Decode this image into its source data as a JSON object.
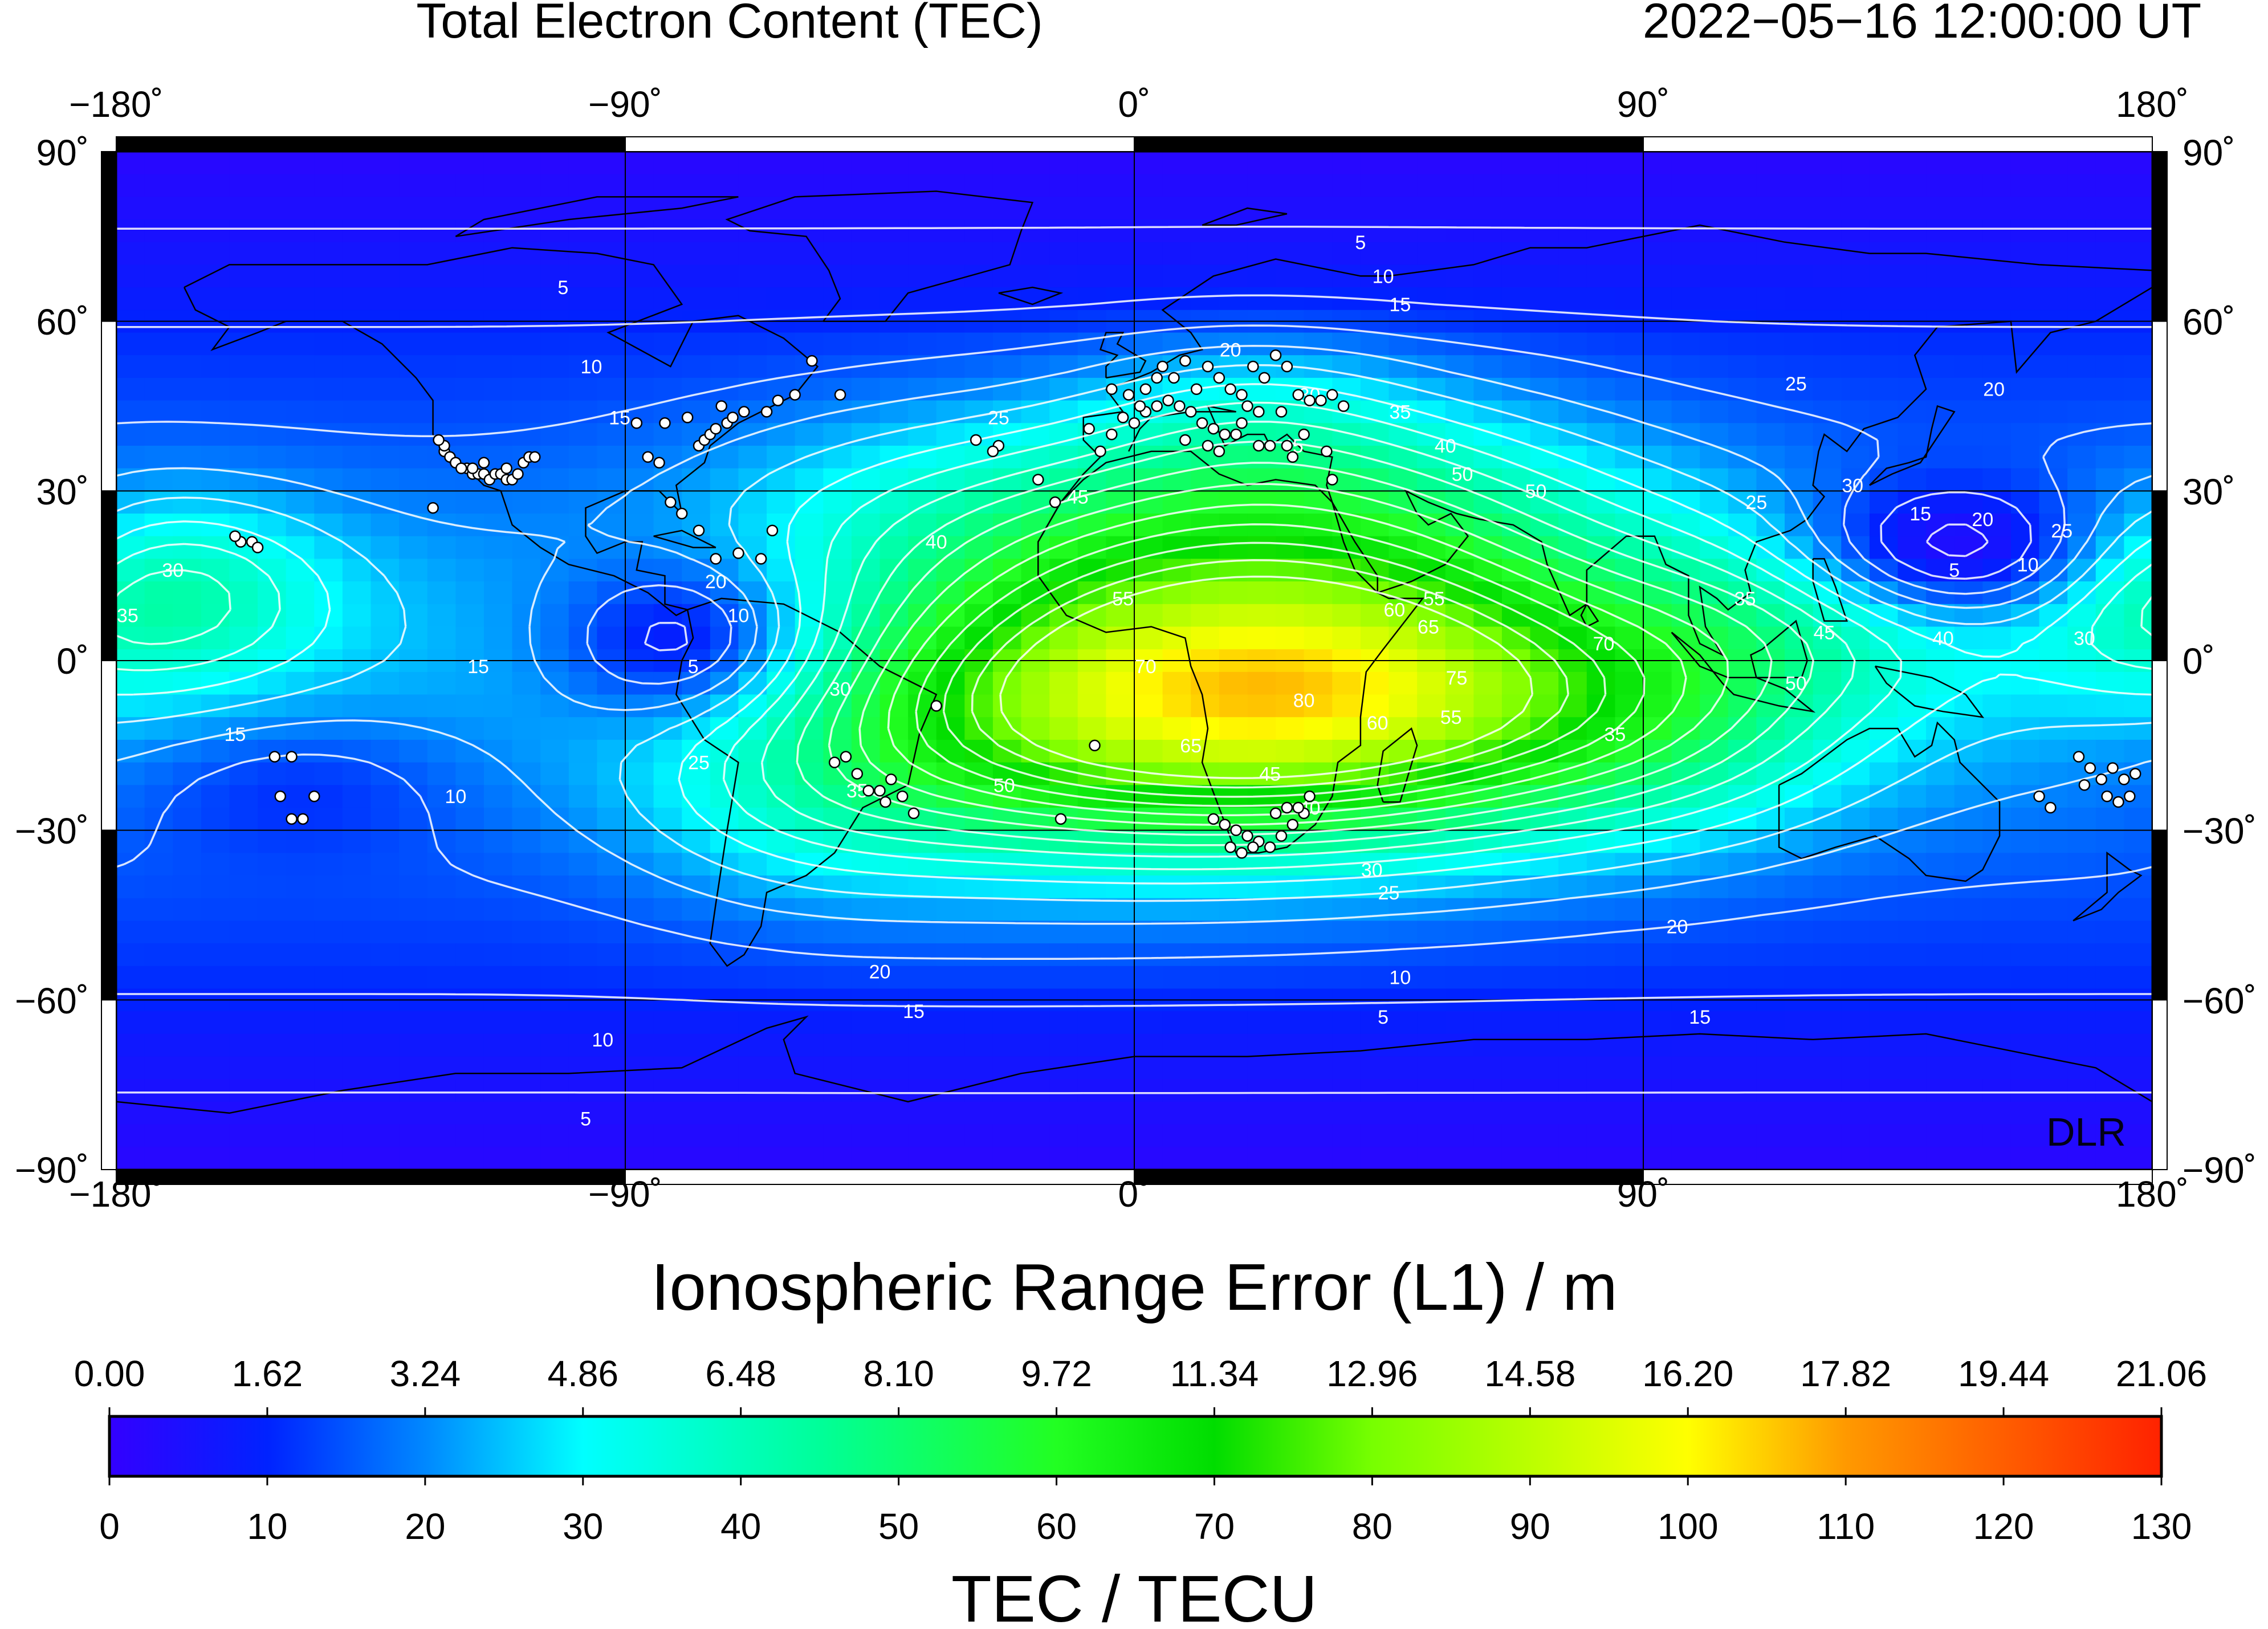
{
  "header": {
    "title": "Total Electron Content (TEC)",
    "timestamp": "2022−05−16  12:00:00 UT"
  },
  "map": {
    "lon_ticks_top": [
      "−180˚",
      "−90˚",
      "0˚",
      "90˚",
      "180˚"
    ],
    "lon_ticks_bottom": [
      "−180˚",
      "−90˚",
      "0˚",
      "90˚",
      "180˚"
    ],
    "lat_ticks_left": [
      "90˚",
      "60˚",
      "30˚",
      "0˚",
      "−30˚",
      "−60˚",
      "−90˚"
    ],
    "lat_ticks_right": [
      "90˚",
      "60˚",
      "30˚",
      "0˚",
      "−30˚",
      "−60˚",
      "−90˚"
    ],
    "watermark": "DLR",
    "contour_labels": [
      {
        "text": "5",
        "lon": 40,
        "lat": 74
      },
      {
        "text": "10",
        "lon": 44,
        "lat": 68
      },
      {
        "text": "15",
        "lon": 47,
        "lat": 63
      },
      {
        "text": "5",
        "lon": -101,
        "lat": 66
      },
      {
        "text": "10",
        "lon": -96,
        "lat": 52
      },
      {
        "text": "15",
        "lon": -91,
        "lat": 43
      },
      {
        "text": "20",
        "lon": 17,
        "lat": 55
      },
      {
        "text": "25",
        "lon": -24,
        "lat": 43
      },
      {
        "text": "30",
        "lon": 31,
        "lat": 47
      },
      {
        "text": "35",
        "lon": 47,
        "lat": 44
      },
      {
        "text": "40",
        "lon": 55,
        "lat": 38
      },
      {
        "text": "45",
        "lon": 28,
        "lat": 38
      },
      {
        "text": "50",
        "lon": 58,
        "lat": 33
      },
      {
        "text": "50",
        "lon": 71,
        "lat": 30
      },
      {
        "text": "25",
        "lon": 117,
        "lat": 49
      },
      {
        "text": "20",
        "lon": 152,
        "lat": 48
      },
      {
        "text": "25",
        "lon": 110,
        "lat": 28
      },
      {
        "text": "30",
        "lon": 127,
        "lat": 31
      },
      {
        "text": "15",
        "lon": 139,
        "lat": 26
      },
      {
        "text": "20",
        "lon": 150,
        "lat": 25
      },
      {
        "text": "25",
        "lon": 164,
        "lat": 23
      },
      {
        "text": "5",
        "lon": 145,
        "lat": 16
      },
      {
        "text": "10",
        "lon": 158,
        "lat": 17
      },
      {
        "text": "30",
        "lon": -170,
        "lat": 16
      },
      {
        "text": "35",
        "lon": -178,
        "lat": 8
      },
      {
        "text": "20",
        "lon": -74,
        "lat": 14
      },
      {
        "text": "10",
        "lon": -70,
        "lat": 8
      },
      {
        "text": "5",
        "lon": -78,
        "lat": -1
      },
      {
        "text": "15",
        "lon": -116,
        "lat": -1
      },
      {
        "text": "40",
        "lon": -35,
        "lat": 21
      },
      {
        "text": "45",
        "lon": -10,
        "lat": 29
      },
      {
        "text": "55",
        "lon": -2,
        "lat": 11
      },
      {
        "text": "60",
        "lon": 46,
        "lat": 9
      },
      {
        "text": "65",
        "lon": 52,
        "lat": 6
      },
      {
        "text": "55",
        "lon": 53,
        "lat": 11
      },
      {
        "text": "70",
        "lon": 83,
        "lat": 3
      },
      {
        "text": "70",
        "lon": 2,
        "lat": -1
      },
      {
        "text": "75",
        "lon": 57,
        "lat": -3
      },
      {
        "text": "80",
        "lon": 30,
        "lat": -7
      },
      {
        "text": "60",
        "lon": 43,
        "lat": -11
      },
      {
        "text": "55",
        "lon": 56,
        "lat": -10
      },
      {
        "text": "65",
        "lon": 10,
        "lat": -15
      },
      {
        "text": "45",
        "lon": 24,
        "lat": -20
      },
      {
        "text": "40",
        "lon": 31,
        "lat": -26
      },
      {
        "text": "50",
        "lon": -23,
        "lat": -22
      },
      {
        "text": "35",
        "lon": 85,
        "lat": -13
      },
      {
        "text": "30",
        "lon": -52,
        "lat": -5
      },
      {
        "text": "25",
        "lon": -77,
        "lat": -18
      },
      {
        "text": "35",
        "lon": -49,
        "lat": -23
      },
      {
        "text": "35",
        "lon": 108,
        "lat": 11
      },
      {
        "text": "45",
        "lon": 122,
        "lat": 5
      },
      {
        "text": "40",
        "lon": 143,
        "lat": 4
      },
      {
        "text": "30",
        "lon": 168,
        "lat": 4
      },
      {
        "text": "50",
        "lon": 117,
        "lat": -4
      },
      {
        "text": "15",
        "lon": -159,
        "lat": -13
      },
      {
        "text": "10",
        "lon": -120,
        "lat": -24
      },
      {
        "text": "30",
        "lon": 42,
        "lat": -37
      },
      {
        "text": "25",
        "lon": 45,
        "lat": -41
      },
      {
        "text": "20",
        "lon": 96,
        "lat": -47
      },
      {
        "text": "20",
        "lon": -45,
        "lat": -55
      },
      {
        "text": "15",
        "lon": -39,
        "lat": -62
      },
      {
        "text": "10",
        "lon": 47,
        "lat": -56
      },
      {
        "text": "5",
        "lon": 44,
        "lat": -63
      },
      {
        "text": "15",
        "lon": 100,
        "lat": -63
      },
      {
        "text": "10",
        "lon": -94,
        "lat": -67
      },
      {
        "text": "5",
        "lon": -97,
        "lat": -81
      }
    ],
    "stations": [
      [
        -122,
        37
      ],
      [
        -121,
        36
      ],
      [
        -120,
        35
      ],
      [
        -118,
        34
      ],
      [
        -117,
        33
      ],
      [
        -116,
        33
      ],
      [
        -119,
        34
      ],
      [
        -115,
        33
      ],
      [
        -114,
        32
      ],
      [
        -113,
        33
      ],
      [
        -112,
        33
      ],
      [
        -111,
        32
      ],
      [
        -110,
        32
      ],
      [
        -109,
        33
      ],
      [
        -108,
        35
      ],
      [
        -107,
        36
      ],
      [
        -122,
        38
      ],
      [
        -123,
        39
      ],
      [
        -117,
        34
      ],
      [
        -115,
        35
      ],
      [
        -111,
        34
      ],
      [
        -106,
        36
      ],
      [
        -124,
        27
      ],
      [
        -77,
        38
      ],
      [
        -76,
        39
      ],
      [
        -75,
        40
      ],
      [
        -74,
        41
      ],
      [
        -72,
        42
      ],
      [
        -71,
        43
      ],
      [
        -73,
        45
      ],
      [
        -79,
        43
      ],
      [
        -83,
        42
      ],
      [
        -88,
        42
      ],
      [
        -69,
        44
      ],
      [
        -63,
        46
      ],
      [
        -60,
        47
      ],
      [
        -65,
        44
      ],
      [
        -57,
        53
      ],
      [
        -52,
        47
      ],
      [
        -80,
        26
      ],
      [
        -82,
        28
      ],
      [
        -77,
        23
      ],
      [
        -74,
        18
      ],
      [
        -66,
        18
      ],
      [
        -70,
        19
      ],
      [
        -64,
        23
      ],
      [
        -84,
        35
      ],
      [
        -86,
        36
      ],
      [
        -156,
        21
      ],
      [
        -158,
        21
      ],
      [
        -155,
        20
      ],
      [
        -159,
        22
      ],
      [
        -152,
        -17
      ],
      [
        -149,
        -17
      ],
      [
        -151,
        -24
      ],
      [
        -149,
        -28
      ],
      [
        -147,
        -28
      ],
      [
        -145,
        -24
      ],
      [
        -4,
        48
      ],
      [
        -1,
        47
      ],
      [
        2,
        48
      ],
      [
        4,
        50
      ],
      [
        5,
        52
      ],
      [
        7,
        50
      ],
      [
        9,
        53
      ],
      [
        11,
        48
      ],
      [
        13,
        52
      ],
      [
        15,
        50
      ],
      [
        17,
        48
      ],
      [
        19,
        47
      ],
      [
        21,
        52
      ],
      [
        23,
        50
      ],
      [
        25,
        54
      ],
      [
        27,
        52
      ],
      [
        29,
        47
      ],
      [
        31,
        46
      ],
      [
        33,
        46
      ],
      [
        35,
        47
      ],
      [
        2,
        44
      ],
      [
        -4,
        40
      ],
      [
        -8,
        41
      ],
      [
        0,
        42
      ],
      [
        8,
        45
      ],
      [
        10,
        44
      ],
      [
        12,
        42
      ],
      [
        14,
        41
      ],
      [
        16,
        40
      ],
      [
        18,
        40
      ],
      [
        22,
        38
      ],
      [
        24,
        38
      ],
      [
        27,
        38
      ],
      [
        30,
        40
      ],
      [
        34,
        37
      ],
      [
        35,
        32
      ],
      [
        6,
        46
      ],
      [
        4,
        45
      ],
      [
        1,
        45
      ],
      [
        -2,
        43
      ],
      [
        -6,
        37
      ],
      [
        9,
        39
      ],
      [
        13,
        38
      ],
      [
        15,
        37
      ],
      [
        20,
        45
      ],
      [
        22,
        44
      ],
      [
        26,
        44
      ],
      [
        19,
        42
      ],
      [
        37,
        45
      ],
      [
        28,
        36
      ],
      [
        -17,
        32
      ],
      [
        -24,
        38
      ],
      [
        -28,
        39
      ],
      [
        -25,
        37
      ],
      [
        -14,
        28
      ],
      [
        -35,
        -8
      ],
      [
        -13,
        -28
      ],
      [
        -7,
        -15
      ],
      [
        14,
        -28
      ],
      [
        16,
        -29
      ],
      [
        18,
        -30
      ],
      [
        20,
        -31
      ],
      [
        22,
        -32
      ],
      [
        24,
        -33
      ],
      [
        26,
        -31
      ],
      [
        28,
        -29
      ],
      [
        30,
        -27
      ],
      [
        17,
        -33
      ],
      [
        19,
        -34
      ],
      [
        21,
        -33
      ],
      [
        25,
        -27
      ],
      [
        27,
        -26
      ],
      [
        29,
        -26
      ],
      [
        31,
        -24
      ],
      [
        -47,
        -23
      ],
      [
        -45,
        -23
      ],
      [
        -43,
        -21
      ],
      [
        -49,
        -20
      ],
      [
        -51,
        -17
      ],
      [
        -53,
        -18
      ],
      [
        -41,
        -24
      ],
      [
        -39,
        -27
      ],
      [
        -44,
        -25
      ],
      [
        167,
        -17
      ],
      [
        169,
        -19
      ],
      [
        171,
        -21
      ],
      [
        173,
        -19
      ],
      [
        175,
        -21
      ],
      [
        177,
        -20
      ],
      [
        168,
        -22
      ],
      [
        172,
        -24
      ],
      [
        174,
        -25
      ],
      [
        176,
        -24
      ],
      [
        160,
        -24
      ],
      [
        162,
        -26
      ]
    ]
  },
  "colorbar": {
    "top_title": "Ionospheric Range Error (L1) / m",
    "top_ticks": [
      "0.00",
      "1.62",
      "3.24",
      "4.86",
      "6.48",
      "8.10",
      "9.72",
      "11.34",
      "12.96",
      "14.58",
      "16.20",
      "17.82",
      "19.44",
      "21.06"
    ],
    "bottom_ticks": [
      "0",
      "10",
      "20",
      "30",
      "40",
      "50",
      "60",
      "70",
      "80",
      "90",
      "100",
      "110",
      "120",
      "130"
    ],
    "bottom_title": "TEC / TECU",
    "range_tecu": [
      0,
      130
    ],
    "range_m": [
      0,
      21.06
    ],
    "gradient_stops": [
      {
        "tecu": 0,
        "color": "#3300ff"
      },
      {
        "tecu": 10,
        "color": "#0022ff"
      },
      {
        "tecu": 20,
        "color": "#0088ff"
      },
      {
        "tecu": 30,
        "color": "#00ffff"
      },
      {
        "tecu": 45,
        "color": "#00ff99"
      },
      {
        "tecu": 60,
        "color": "#22ff22"
      },
      {
        "tecu": 70,
        "color": "#00dd00"
      },
      {
        "tecu": 80,
        "color": "#77ff00"
      },
      {
        "tecu": 100,
        "color": "#ffff00"
      },
      {
        "tecu": 110,
        "color": "#ff9900"
      },
      {
        "tecu": 130,
        "color": "#ff2200"
      }
    ]
  },
  "chart_data": {
    "type": "heatmap",
    "title": "Total Electron Content (TEC)",
    "subtitle": "2022−05−16  12:00:00 UT",
    "xlim": [
      -180,
      180
    ],
    "ylim": [
      -90,
      90
    ],
    "colorbar_label": "TEC / TECU",
    "colorbar_label_secondary": "Ionospheric Range Error (L1) / m",
    "value_range": [
      0,
      130
    ],
    "contour_levels": [
      5,
      10,
      15,
      20,
      25,
      30,
      35,
      40,
      45,
      50,
      55,
      60,
      65,
      70,
      75,
      80
    ],
    "peak_tec_approx": 82,
    "peak_location_approx": {
      "lon": 30,
      "lat": -8
    },
    "lows_approx": [
      {
        "lon": 145,
        "lat": 18,
        "tec": 3
      },
      {
        "lon": -78,
        "lat": 3,
        "tec": 4
      },
      {
        "lon": -148,
        "lat": -22,
        "tec": 8
      }
    ]
  }
}
